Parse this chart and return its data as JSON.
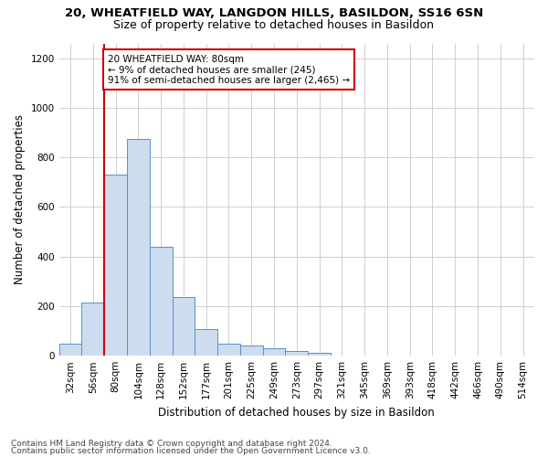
{
  "title1": "20, WHEATFIELD WAY, LANGDON HILLS, BASILDON, SS16 6SN",
  "title2": "Size of property relative to detached houses in Basildon",
  "xlabel": "Distribution of detached houses by size in Basildon",
  "ylabel": "Number of detached properties",
  "footnote1": "Contains HM Land Registry data © Crown copyright and database right 2024.",
  "footnote2": "Contains public sector information licensed under the Open Government Licence v3.0.",
  "annotation_line1": "20 WHEATFIELD WAY: 80sqm",
  "annotation_line2": "← 9% of detached houses are smaller (245)",
  "annotation_line3": "91% of semi-detached houses are larger (2,465) →",
  "bar_color": "#cddcee",
  "bar_edge_color": "#5b8fc9",
  "marker_line_color": "#cc0000",
  "annotation_box_edge_color": "#cc0000",
  "categories": [
    "32sqm",
    "56sqm",
    "80sqm",
    "104sqm",
    "128sqm",
    "152sqm",
    "177sqm",
    "201sqm",
    "225sqm",
    "249sqm",
    "273sqm",
    "297sqm",
    "321sqm",
    "345sqm",
    "369sqm",
    "393sqm",
    "418sqm",
    "442sqm",
    "466sqm",
    "490sqm",
    "514sqm"
  ],
  "values": [
    50,
    215,
    730,
    875,
    440,
    235,
    107,
    47,
    40,
    30,
    20,
    12,
    0,
    0,
    0,
    0,
    0,
    0,
    0,
    0,
    0
  ],
  "marker_index": 2,
  "ylim": [
    0,
    1260
  ],
  "yticks": [
    0,
    200,
    400,
    600,
    800,
    1000,
    1200
  ],
  "background_color": "#ffffff",
  "grid_color": "#c8c8c8",
  "title1_fontsize": 9.5,
  "title2_fontsize": 9.0,
  "ylabel_fontsize": 8.5,
  "xlabel_fontsize": 8.5,
  "tick_fontsize": 7.5,
  "footnote_fontsize": 6.5,
  "annotation_fontsize": 7.5
}
